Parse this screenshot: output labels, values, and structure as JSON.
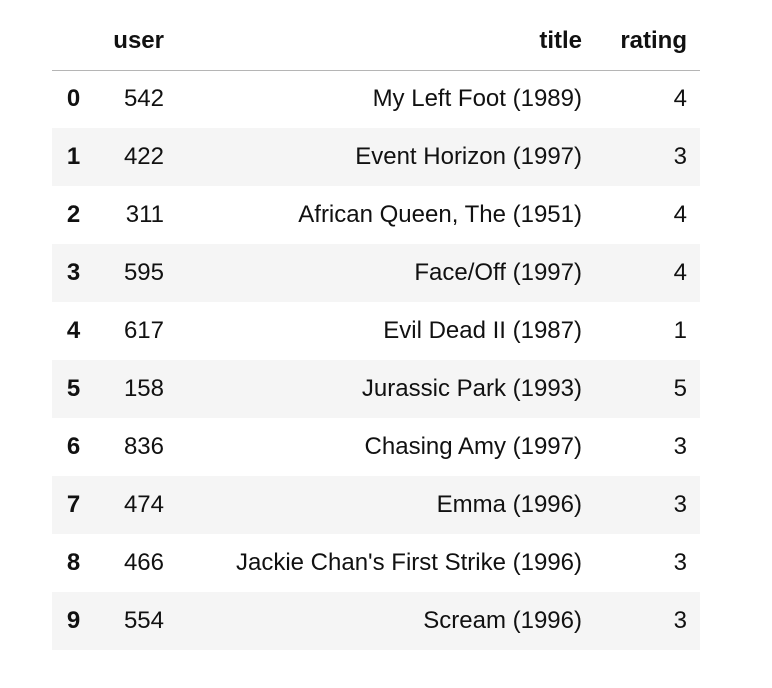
{
  "table": {
    "columns": [
      "user",
      "title",
      "rating"
    ],
    "rows": [
      [
        0,
        542,
        "My Left Foot (1989)",
        4
      ],
      [
        1,
        422,
        "Event Horizon (1997)",
        3
      ],
      [
        2,
        311,
        "African Queen, The (1951)",
        4
      ],
      [
        3,
        595,
        "Face/Off (1997)",
        4
      ],
      [
        4,
        617,
        "Evil Dead II (1987)",
        1
      ],
      [
        5,
        158,
        "Jurassic Park (1993)",
        5
      ],
      [
        6,
        836,
        "Chasing Amy (1997)",
        3
      ],
      [
        7,
        474,
        "Emma (1996)",
        3
      ],
      [
        8,
        466,
        "Jackie Chan's First Strike (1996)",
        3
      ],
      [
        9,
        554,
        "Scream (1996)",
        3
      ]
    ]
  }
}
